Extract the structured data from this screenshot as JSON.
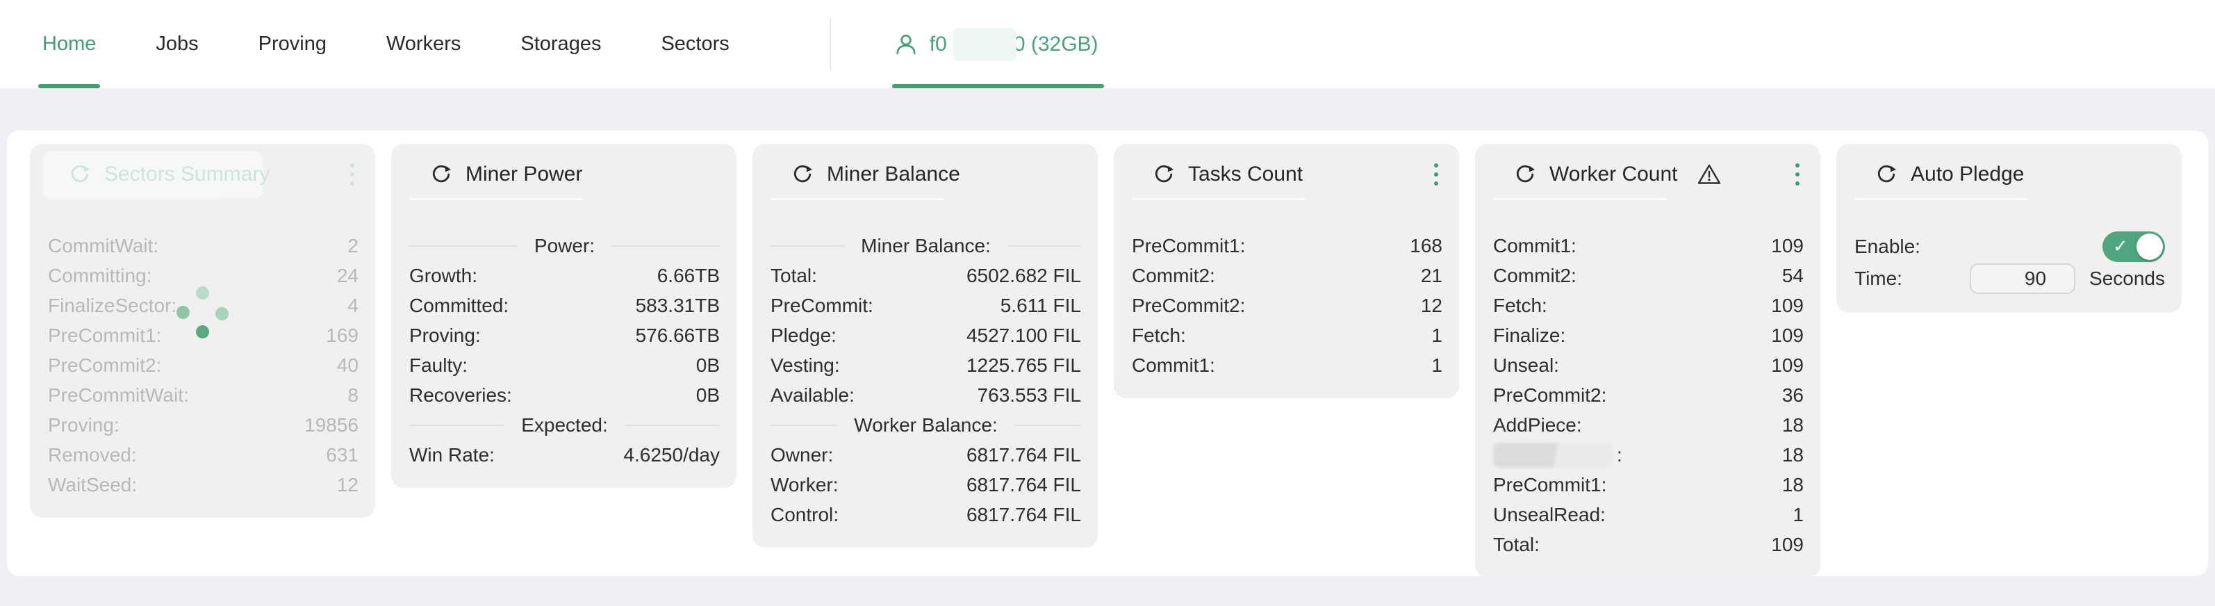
{
  "colors": {
    "accent_green": "#3f9e74",
    "toggle_green": "#4fa580",
    "page_background": "#eef0f4",
    "panel_background": "#ffffff",
    "card_background": "#f0f0f1",
    "text": "#2e2e2e",
    "loading_text": "#b6b9bb",
    "loading_title_green": "#cfe3d8",
    "redaction_mint": "#edf8f2",
    "redaction_gray": "#dbdbdc",
    "spinner_dots": [
      "#b9dbc7",
      "#8ec6a7",
      "#a6d3b9",
      "#5ba980"
    ]
  },
  "nav": {
    "tabs": [
      {
        "label": "Home",
        "active": true
      },
      {
        "label": "Jobs",
        "active": false
      },
      {
        "label": "Proving",
        "active": false
      },
      {
        "label": "Workers",
        "active": false
      },
      {
        "label": "Storages",
        "active": false
      },
      {
        "label": "Sectors",
        "active": false
      }
    ],
    "miner_tab": {
      "icon": "person-icon",
      "prefix": "f0",
      "redacted_middle": true,
      "suffix": "0 (32GB)",
      "active": true
    }
  },
  "cards": [
    {
      "title": "Sectors Summary",
      "loading": true,
      "icons": [
        "refresh-icon",
        "more-icon",
        "spinner-icon"
      ],
      "sections": [
        {
          "type": "row",
          "label": "CommitWait:",
          "value": "2"
        },
        {
          "type": "row",
          "label": "Committing:",
          "value": "24"
        },
        {
          "type": "row",
          "label": "FinalizeSector:",
          "value": "4"
        },
        {
          "type": "row",
          "label": "PreCommit1:",
          "value": "169"
        },
        {
          "type": "row",
          "label": "PreCommit2:",
          "value": "40"
        },
        {
          "type": "row",
          "label": "PreCommitWait:",
          "value": "8"
        },
        {
          "type": "row",
          "label": "Proving:",
          "value": "19856"
        },
        {
          "type": "row",
          "label": "Removed:",
          "value": "631"
        },
        {
          "type": "row",
          "label": "WaitSeed:",
          "value": "12"
        }
      ]
    },
    {
      "title": "Miner Power",
      "loading": false,
      "icons": [
        "refresh-icon"
      ],
      "sections": [
        {
          "type": "divider",
          "text": "Power:"
        },
        {
          "type": "row",
          "label": "Growth:",
          "value": "6.66TB"
        },
        {
          "type": "row",
          "label": "Committed:",
          "value": "583.31TB"
        },
        {
          "type": "row",
          "label": "Proving:",
          "value": "576.66TB"
        },
        {
          "type": "row",
          "label": "Faulty:",
          "value": "0B"
        },
        {
          "type": "row",
          "label": "Recoveries:",
          "value": "0B"
        },
        {
          "type": "divider",
          "text": "Expected:"
        },
        {
          "type": "row",
          "label": "Win Rate:",
          "value": "4.6250/day"
        }
      ]
    },
    {
      "title": "Miner Balance",
      "loading": false,
      "icons": [
        "refresh-icon"
      ],
      "sections": [
        {
          "type": "divider",
          "text": "Miner Balance:"
        },
        {
          "type": "row",
          "label": "Total:",
          "value": "6502.682 FIL"
        },
        {
          "type": "row",
          "label": "PreCommit:",
          "value": "5.611 FIL"
        },
        {
          "type": "row",
          "label": "Pledge:",
          "value": "4527.100 FIL"
        },
        {
          "type": "row",
          "label": "Vesting:",
          "value": "1225.765 FIL"
        },
        {
          "type": "row",
          "label": "Available:",
          "value": "763.553 FIL"
        },
        {
          "type": "divider",
          "text": "Worker Balance:"
        },
        {
          "type": "row",
          "label": "Owner:",
          "value": "6817.764 FIL"
        },
        {
          "type": "row",
          "label": "Worker:",
          "value": "6817.764 FIL"
        },
        {
          "type": "row",
          "label": "Control:",
          "value": "6817.764 FIL"
        }
      ]
    },
    {
      "title": "Tasks Count",
      "loading": false,
      "icons": [
        "refresh-icon",
        "more-icon"
      ],
      "sections": [
        {
          "type": "row",
          "label": "PreCommit1:",
          "value": "168"
        },
        {
          "type": "row",
          "label": "Commit2:",
          "value": "21"
        },
        {
          "type": "row",
          "label": "PreCommit2:",
          "value": "12"
        },
        {
          "type": "row",
          "label": "Fetch:",
          "value": "1"
        },
        {
          "type": "row",
          "label": "Commit1:",
          "value": "1"
        }
      ]
    },
    {
      "title": "Worker Count",
      "loading": false,
      "icons": [
        "refresh-icon",
        "warning-icon",
        "more-icon"
      ],
      "sections": [
        {
          "type": "row",
          "label": "Commit1:",
          "value": "109"
        },
        {
          "type": "row",
          "label": "Commit2:",
          "value": "54"
        },
        {
          "type": "row",
          "label": "Fetch:",
          "value": "109"
        },
        {
          "type": "row",
          "label": "Finalize:",
          "value": "109"
        },
        {
          "type": "row",
          "label": "Unseal:",
          "value": "109"
        },
        {
          "type": "row",
          "label": "PreCommit2:",
          "value": "36"
        },
        {
          "type": "row",
          "label": "AddPiece:",
          "value": "18"
        },
        {
          "type": "row",
          "label": ":",
          "value": "18",
          "redacted": true
        },
        {
          "type": "row",
          "label": "PreCommit1:",
          "value": "18"
        },
        {
          "type": "row",
          "label": "UnsealRead:",
          "value": "1"
        },
        {
          "type": "row",
          "label": "Total:",
          "value": "109"
        }
      ]
    },
    {
      "title": "Auto Pledge",
      "loading": false,
      "icons": [
        "refresh-icon"
      ],
      "sections": [
        {
          "type": "toggle",
          "label": "Enable:",
          "state": "on"
        },
        {
          "type": "input",
          "label": "Time:",
          "value": "90",
          "suffix": "Seconds"
        }
      ]
    }
  ]
}
